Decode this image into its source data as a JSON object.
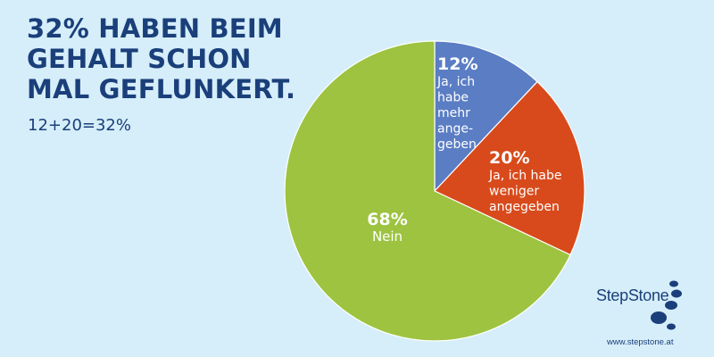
{
  "headline": {
    "lines": [
      "32% HABEN BEIM",
      "GEHALT SCHON",
      "MAL GEFLUNKERT."
    ],
    "subline": "12+20=32%"
  },
  "chart_data": {
    "type": "pie",
    "title": "32% HABEN BEIM GEHALT SCHON MAL GEFLUNKERT.",
    "slices": [
      {
        "percent_label": "12%",
        "value": 12,
        "label_lines": [
          "Ja, ich",
          "habe",
          "mehr",
          "ange-",
          "geben"
        ],
        "color": "#5a7dc4"
      },
      {
        "percent_label": "20%",
        "value": 20,
        "label_lines": [
          "Ja, ich habe",
          "weniger",
          "angegeben"
        ],
        "color": "#d84a1b"
      },
      {
        "percent_label": "68%",
        "value": 68,
        "label_lines": [
          "Nein"
        ],
        "color": "#9dc340"
      }
    ]
  },
  "brand": {
    "name": "StepStone",
    "url": "www.stepstone.at"
  },
  "colors": {
    "background": "#d6eefa",
    "headline": "#1a3f7a",
    "slice_text": "#ffffff"
  }
}
